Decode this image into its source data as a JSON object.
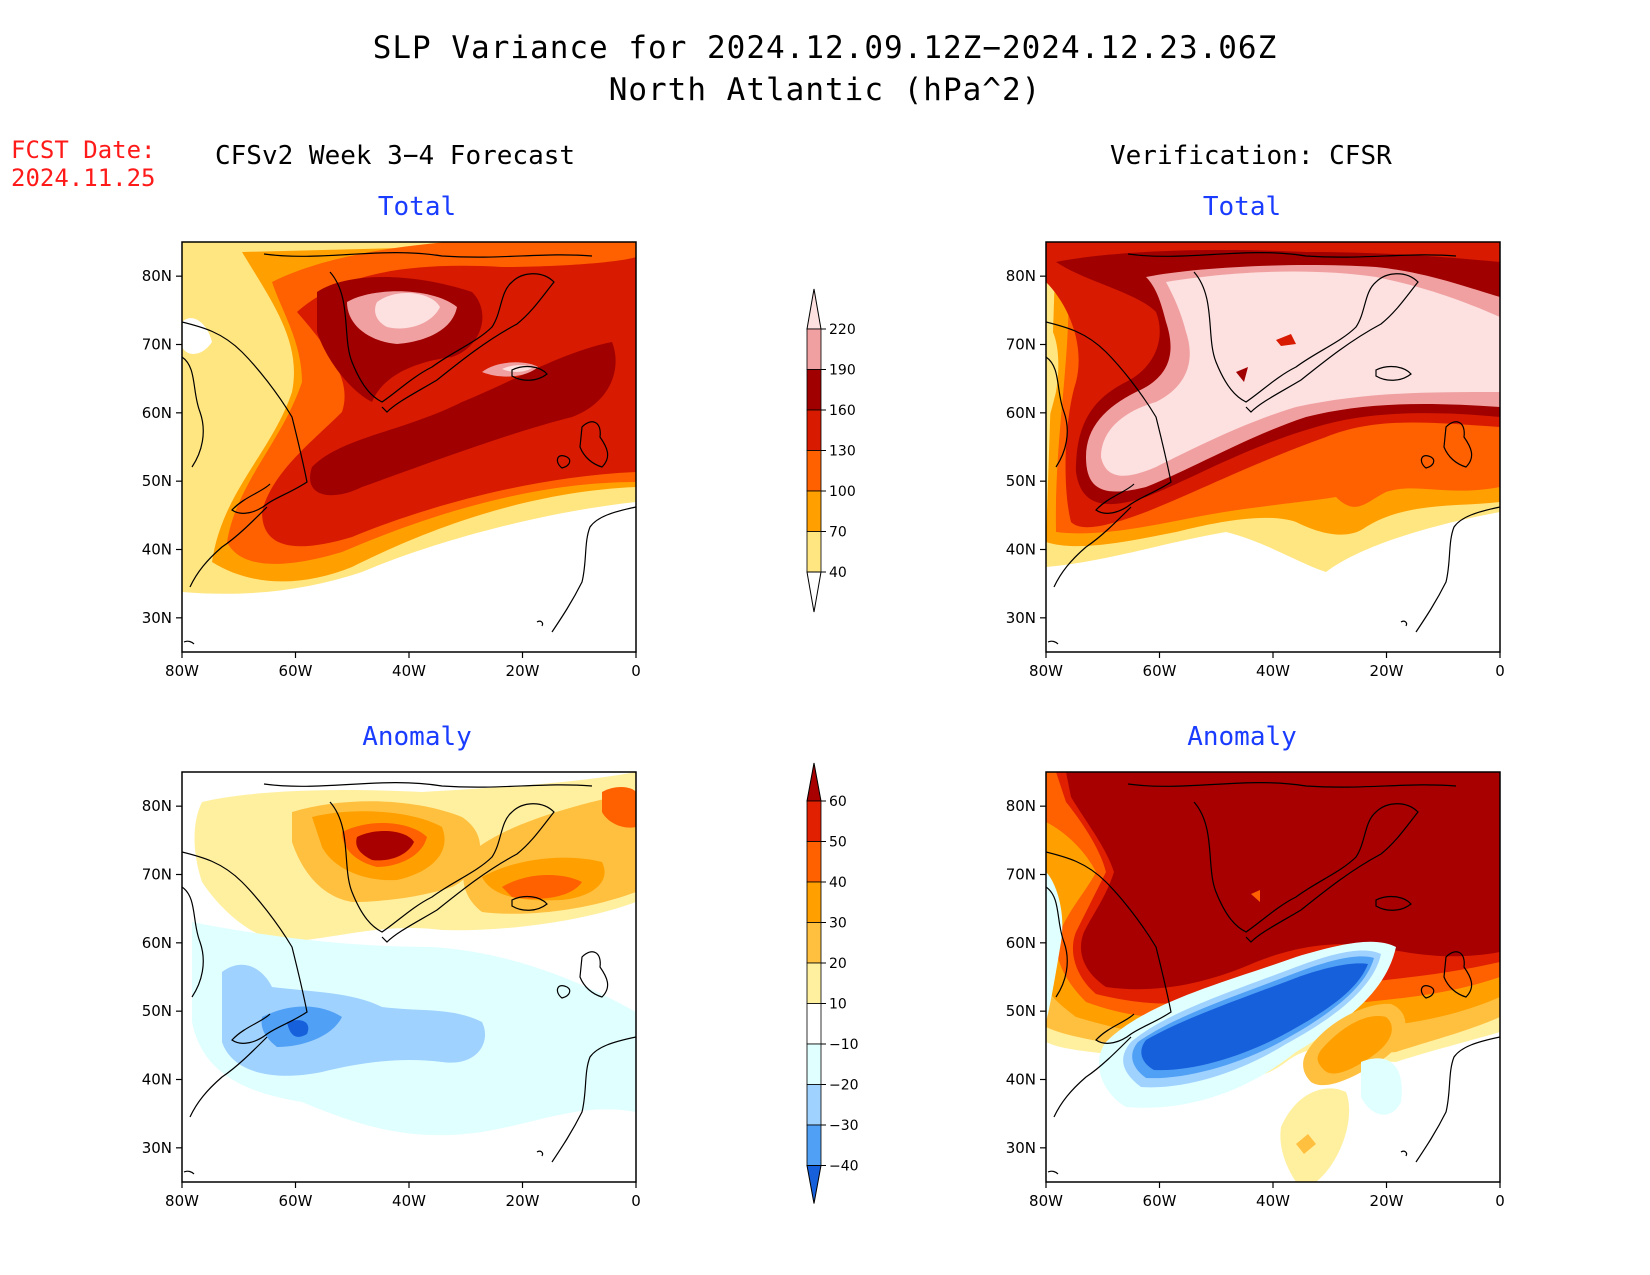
{
  "title": {
    "line1": "SLP Variance for 2024.12.09.12Z−2024.12.23.06Z",
    "line2": "North Atlantic (hPa^2)"
  },
  "fcst": {
    "line1": "FCST Date:",
    "line2": "2024.11.25"
  },
  "columns": {
    "left": "CFSv2 Week 3−4 Forecast",
    "right": "Verification: CFSR"
  },
  "panels": {
    "top_left": "Total",
    "top_right": "Total",
    "bottom_left": "Anomaly",
    "bottom_right": "Anomaly"
  },
  "axes": {
    "lon_ticks": [
      "80W",
      "60W",
      "40W",
      "20W",
      "0"
    ],
    "lat_ticks": [
      "80N",
      "70N",
      "60N",
      "50N",
      "40N",
      "30N"
    ],
    "lon_range": [
      -80,
      0
    ],
    "lat_range": [
      25,
      85
    ]
  },
  "colorbars": {
    "total": {
      "levels": [
        "220",
        "190",
        "160",
        "130",
        "100",
        "70",
        "40"
      ],
      "colors": [
        "#fde0e0",
        "#f0a0a0",
        "#a00000",
        "#d81a00",
        "#ff6000",
        "#ffa000",
        "#ffe680"
      ]
    },
    "anomaly": {
      "levels": [
        "60",
        "50",
        "40",
        "30",
        "20",
        "10",
        "−10",
        "−20",
        "−30",
        "−40"
      ],
      "colors": [
        "#a80000",
        "#e02000",
        "#ff6000",
        "#ffa000",
        "#ffc040",
        "#fff0a0",
        "#ffffff",
        "#e0ffff",
        "#a0d2ff",
        "#50a0f5",
        "#1660dc"
      ]
    }
  }
}
